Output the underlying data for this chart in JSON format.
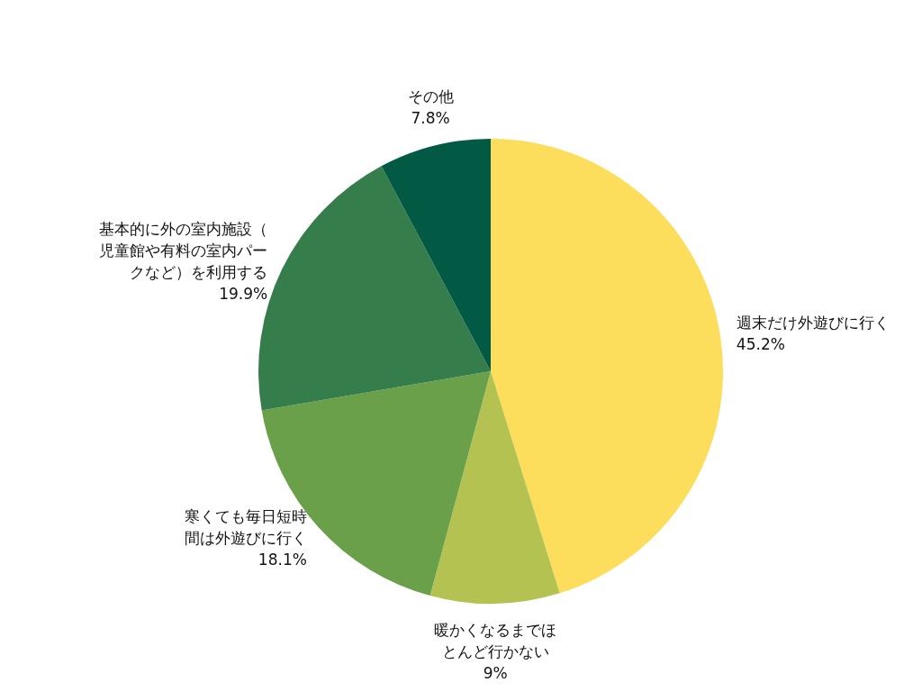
{
  "chart_data": {
    "type": "pie",
    "categories": [
      "週末だけ外遊びに行く",
      "暖かくなるまでほとんど行かない",
      "寒くても毎日短時間は外遊びに行く",
      "基本的に外の室内施設（児童館や有料の室内パークなど）を利用する",
      "その他"
    ],
    "values": [
      45.2,
      9,
      18.1,
      19.9,
      7.8
    ],
    "value_labels": [
      "45.2%",
      "9%",
      "18.1%",
      "19.9%",
      "7.8%"
    ],
    "colors": [
      "#fddd5c",
      "#b3c251",
      "#6ba04a",
      "#357e4b",
      "#025a45"
    ]
  }
}
